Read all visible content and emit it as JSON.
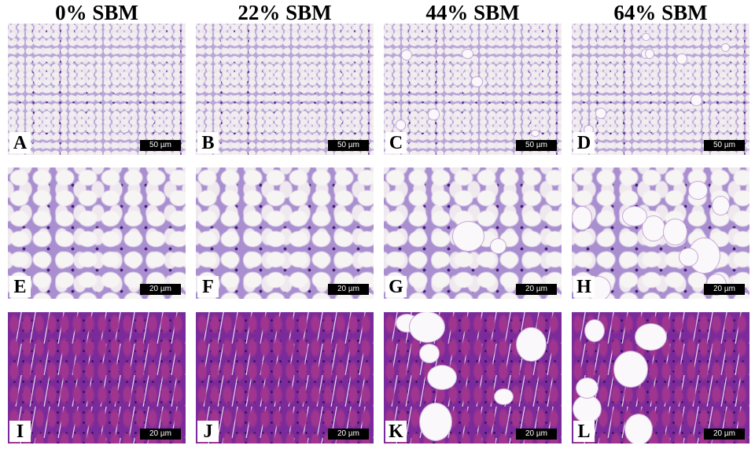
{
  "columns": [
    "0% SBM",
    "22% SBM",
    "44% SBM",
    "64% SBM"
  ],
  "panels": [
    {
      "label": "A",
      "scale": "50 µm"
    },
    {
      "label": "B",
      "scale": "50 µm"
    },
    {
      "label": "C",
      "scale": "50 µm"
    },
    {
      "label": "D",
      "scale": "50 µm"
    },
    {
      "label": "E",
      "scale": "20 µm"
    },
    {
      "label": "F",
      "scale": "20 µm"
    },
    {
      "label": "G",
      "scale": "20 µm"
    },
    {
      "label": "H",
      "scale": "20 µm"
    },
    {
      "label": "I",
      "scale": "20 µm"
    },
    {
      "label": "J",
      "scale": "20 µm"
    },
    {
      "label": "K",
      "scale": "20 µm"
    },
    {
      "label": "L",
      "scale": "20 µm"
    }
  ],
  "colors": {
    "stain_light": "#b9a6d6",
    "stain_dark": "#7a2a9a",
    "scale_bar": "#000000"
  }
}
